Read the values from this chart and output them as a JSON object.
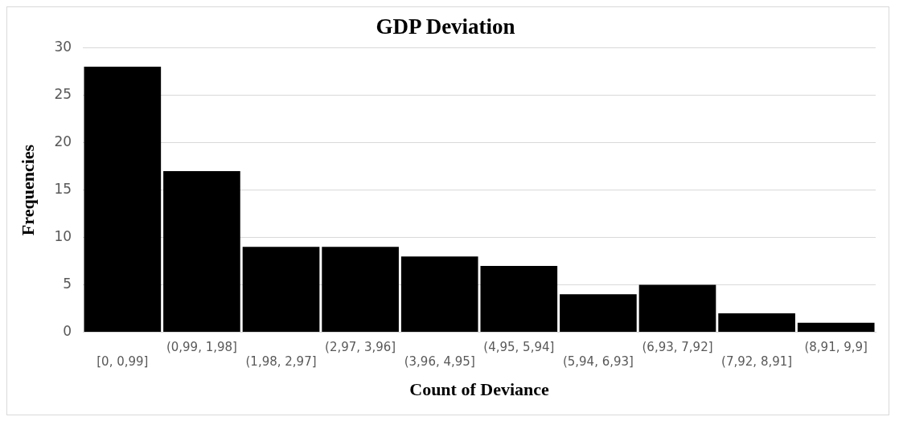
{
  "chart_data": {
    "type": "bar",
    "title": "GDP Deviation",
    "xlabel": "Count of Deviance",
    "ylabel": "Frequencies",
    "categories": [
      "[0, 0,99]",
      "(0,99, 1,98]",
      "(1,98, 2,97]",
      "(2,97, 3,96]",
      "(3,96, 4,95]",
      "(4,95, 5,94]",
      "(5,94, 6,93]",
      "(6,93, 7,92]",
      "(7,92, 8,91]",
      "(8,91, 9,9]"
    ],
    "values": [
      28,
      17,
      9,
      9,
      8,
      7,
      4,
      5,
      2,
      1
    ],
    "color": "#000000",
    "ylim": [
      0,
      30
    ],
    "yticks": [
      0,
      5,
      10,
      15,
      20,
      25,
      30
    ],
    "grid": "y",
    "legend": false
  }
}
